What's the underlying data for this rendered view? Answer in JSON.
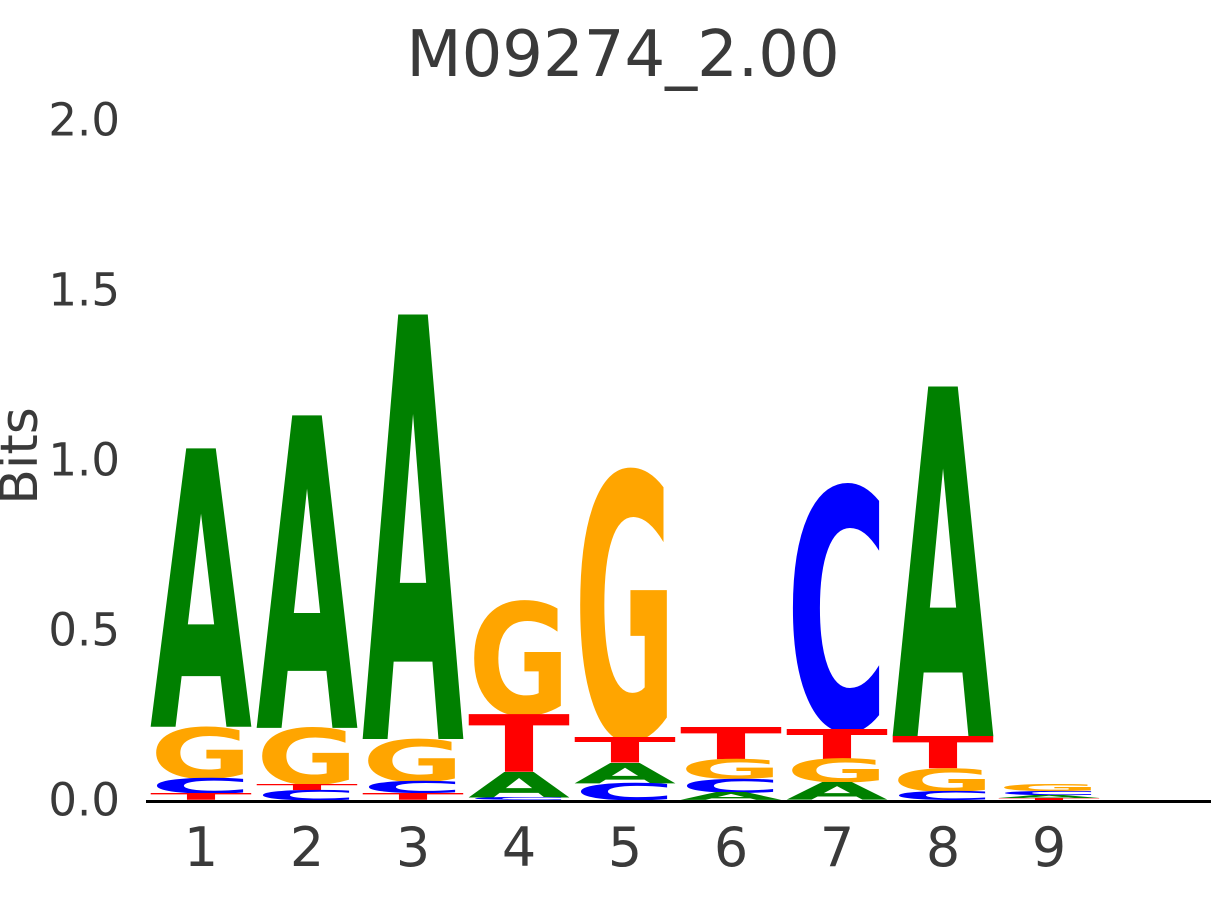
{
  "figure": {
    "title": "M09274_2.00",
    "background_color": "#ffffff",
    "text_color": "#3a3a3a",
    "baseline_color": "#000000"
  },
  "chart_data": {
    "type": "sequence_logo",
    "title": "M09274_2.00",
    "xlabel": "",
    "ylabel": "Bits",
    "units": "bits",
    "ylim": [
      0.0,
      2.0
    ],
    "grid": false,
    "legend": "none",
    "ytick_labels": [
      "0.0",
      "0.5",
      "1.0",
      "1.5",
      "2.0"
    ],
    "categories": [
      "1",
      "2",
      "3",
      "4",
      "5",
      "6",
      "7",
      "8",
      "9"
    ],
    "letter_colors": {
      "A": "#008000",
      "C": "#0000ff",
      "G": "#ffa500",
      "T": "#ff0000"
    },
    "positions": [
      {
        "position": 1,
        "stack_top_to_bottom": [
          {
            "letter": "A",
            "bits": 0.82
          },
          {
            "letter": "G",
            "bits": 0.15
          },
          {
            "letter": "C",
            "bits": 0.045
          },
          {
            "letter": "T",
            "bits": 0.02
          }
        ]
      },
      {
        "position": 2,
        "stack_top_to_bottom": [
          {
            "letter": "A",
            "bits": 0.92
          },
          {
            "letter": "G",
            "bits": 0.165
          },
          {
            "letter": "T",
            "bits": 0.018
          },
          {
            "letter": "C",
            "bits": 0.03
          }
        ]
      },
      {
        "position": 3,
        "stack_top_to_bottom": [
          {
            "letter": "A",
            "bits": 1.25
          },
          {
            "letter": "G",
            "bits": 0.125
          },
          {
            "letter": "C",
            "bits": 0.035
          },
          {
            "letter": "T",
            "bits": 0.02
          }
        ]
      },
      {
        "position": 4,
        "stack_top_to_bottom": [
          {
            "letter": "G",
            "bits": 0.33
          },
          {
            "letter": "T",
            "bits": 0.17
          },
          {
            "letter": "A",
            "bits": 0.075
          },
          {
            "letter": "C",
            "bits": 0.008
          }
        ]
      },
      {
        "position": 5,
        "stack_top_to_bottom": [
          {
            "letter": "G",
            "bits": 0.78
          },
          {
            "letter": "T",
            "bits": 0.075
          },
          {
            "letter": "A",
            "bits": 0.06
          },
          {
            "letter": "C",
            "bits": 0.05
          }
        ]
      },
      {
        "position": 6,
        "stack_top_to_bottom": [
          {
            "letter": "T",
            "bits": 0.095
          },
          {
            "letter": "G",
            "bits": 0.058
          },
          {
            "letter": "C",
            "bits": 0.04
          },
          {
            "letter": "A",
            "bits": 0.023
          }
        ]
      },
      {
        "position": 7,
        "stack_top_to_bottom": [
          {
            "letter": "C",
            "bits": 0.71
          },
          {
            "letter": "T",
            "bits": 0.09
          },
          {
            "letter": "G",
            "bits": 0.068
          },
          {
            "letter": "A",
            "bits": 0.052
          }
        ]
      },
      {
        "position": 8,
        "stack_top_to_bottom": [
          {
            "letter": "A",
            "bits": 1.03
          },
          {
            "letter": "T",
            "bits": 0.095
          },
          {
            "letter": "G",
            "bits": 0.066
          },
          {
            "letter": "C",
            "bits": 0.026
          }
        ]
      },
      {
        "position": 9,
        "stack_top_to_bottom": [
          {
            "letter": "G",
            "bits": 0.02
          },
          {
            "letter": "C",
            "bits": 0.012
          },
          {
            "letter": "A",
            "bits": 0.009
          },
          {
            "letter": "T",
            "bits": 0.006
          }
        ]
      }
    ]
  }
}
